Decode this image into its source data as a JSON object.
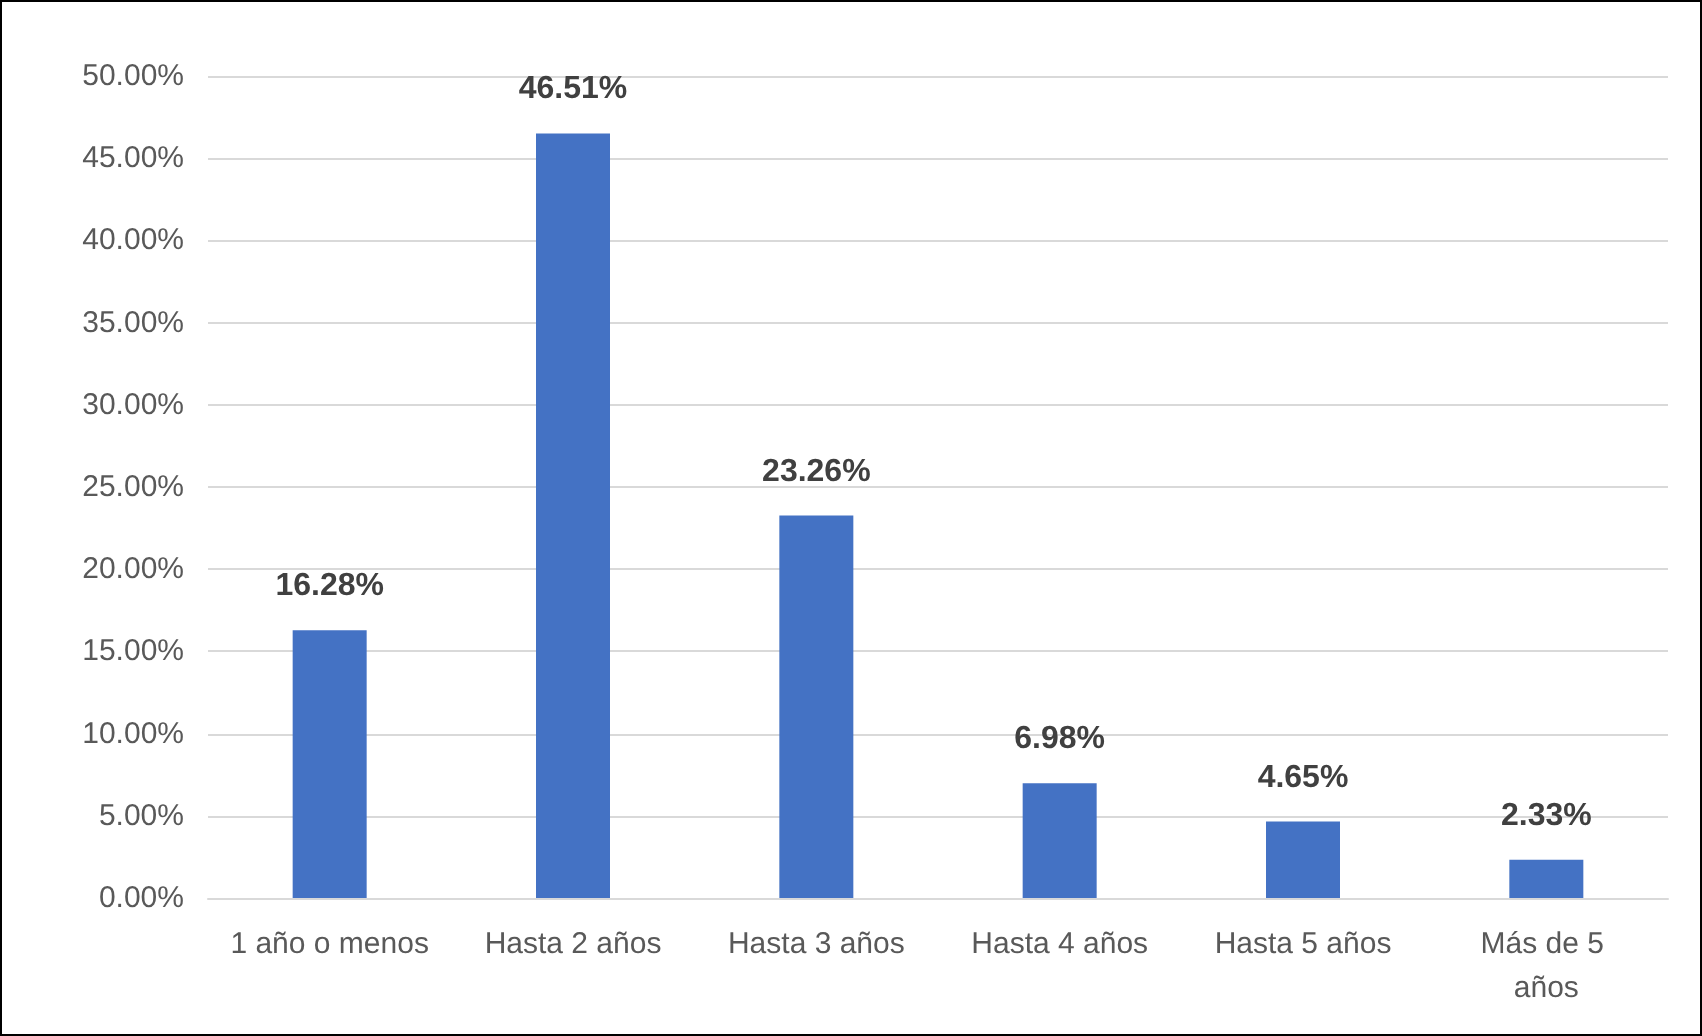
{
  "chart_data": {
    "type": "bar",
    "categories": [
      "1 año o menos",
      "Hasta 2 años",
      "Hasta 3 años",
      "Hasta 4 años",
      "Hasta 5 años",
      "Más de 5 años"
    ],
    "values": [
      16.28,
      46.51,
      23.26,
      6.98,
      4.65,
      2.33
    ],
    "value_labels": [
      "16.28%",
      "46.51%",
      "23.26%",
      "6.98%",
      "4.65%",
      "2.33%"
    ],
    "color": "#4472c4",
    "ylim": [
      0,
      50
    ],
    "yticks": [
      {
        "value": 0,
        "label": "0.00%"
      },
      {
        "value": 5,
        "label": "5.00%"
      },
      {
        "value": 10,
        "label": "10.00%"
      },
      {
        "value": 15,
        "label": "15.00%"
      },
      {
        "value": 20,
        "label": "20.00%"
      },
      {
        "value": 25,
        "label": "25.00%"
      },
      {
        "value": 30,
        "label": "30.00%"
      },
      {
        "value": 35,
        "label": "35.00%"
      },
      {
        "value": 40,
        "label": "40.00%"
      },
      {
        "value": 45,
        "label": "45.00%"
      },
      {
        "value": 50,
        "label": "50.00%"
      }
    ],
    "grid": "y"
  }
}
